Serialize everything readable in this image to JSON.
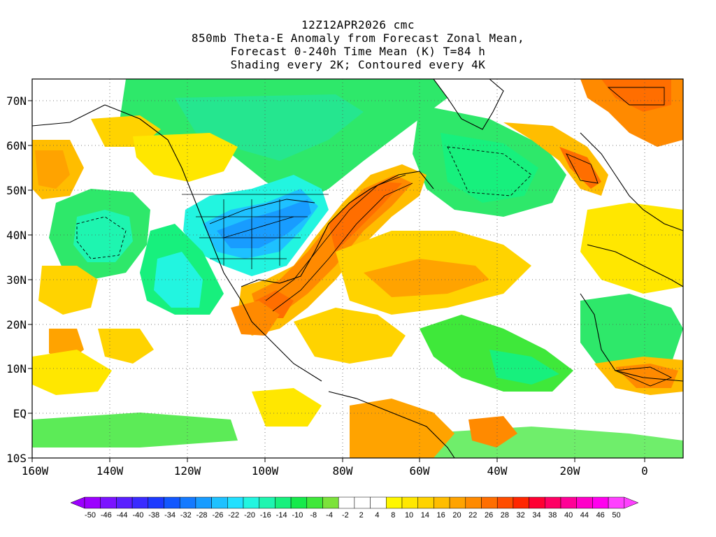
{
  "title": {
    "line1": "12Z12APR2026 cmc",
    "line2": "850mb Theta-E Anomaly from Forecast Zonal Mean,",
    "line3": "Forecast 0-240h Time Mean (K) T=84 h",
    "line4": "Shading every 2K; Contoured every 4K"
  },
  "map": {
    "lat_labels": [
      "70N",
      "60N",
      "50N",
      "40N",
      "30N",
      "20N",
      "10N",
      "EQ",
      "10S"
    ],
    "lon_labels": [
      "160W",
      "140W",
      "120W",
      "100W",
      "80W",
      "60W",
      "40W",
      "20W",
      "0"
    ]
  },
  "colorbar": {
    "labels": [
      "-50",
      "-46",
      "-44",
      "-40",
      "-38",
      "-34",
      "-32",
      "-28",
      "-26",
      "-22",
      "-20",
      "-16",
      "-14",
      "-10",
      "-8",
      "-4",
      "-2",
      "2",
      "4",
      "8",
      "10",
      "14",
      "16",
      "20",
      "22",
      "26",
      "28",
      "32",
      "34",
      "38",
      "40",
      "44",
      "46",
      "50"
    ],
    "colors": [
      "#9c00ff",
      "#7b12ff",
      "#5a1fff",
      "#3a2bff",
      "#1c3aff",
      "#1257ff",
      "#147aff",
      "#189cff",
      "#1ec1ff",
      "#22e0ff",
      "#22f5e0",
      "#1ef5b0",
      "#17f07d",
      "#16ea4b",
      "#3fe83a",
      "#7ce23b",
      "#ffffff",
      "#ffffff",
      "#ffffff",
      "#fff700",
      "#ffe700",
      "#ffd300",
      "#ffbd00",
      "#ffa300",
      "#ff8a00",
      "#ff6e00",
      "#ff4d00",
      "#ff2600",
      "#ff0032",
      "#ff0064",
      "#ff0096",
      "#ff00c8",
      "#ff00ee",
      "#ff40ff"
    ],
    "left_arrow_color": "#9c00ff",
    "right_arrow_color": "#ff40ff"
  }
}
